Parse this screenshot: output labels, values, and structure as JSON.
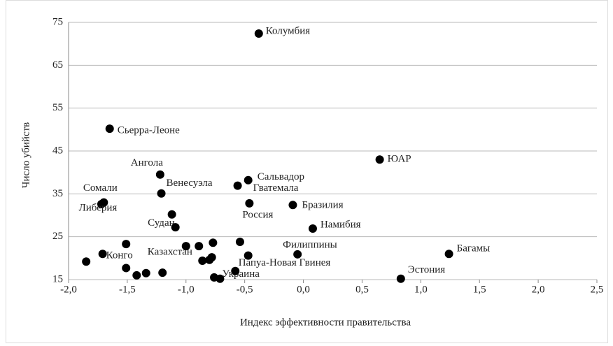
{
  "chart_data": {
    "type": "scatter",
    "x_label": "Индекс эффективности правительства",
    "y_label": "Число убийств",
    "x": [
      -0.38,
      -1.65,
      0.65,
      -1.22,
      -0.47,
      -0.56,
      -1.21,
      -1.7,
      -1.72,
      -0.46,
      -0.09,
      -1.12,
      0.08,
      -1.71,
      -1.0,
      -0.05,
      -0.47,
      1.24,
      -0.71,
      0.83,
      -1.09,
      -1.51,
      -0.54,
      -0.77,
      -0.89,
      -0.78,
      -0.8,
      -0.86,
      -1.85,
      -1.51,
      -1.2,
      -1.34,
      -1.42,
      -0.58,
      -0.76
    ],
    "values": [
      72.4,
      50.2,
      43.0,
      39.5,
      38.2,
      36.9,
      35.1,
      33.0,
      32.6,
      32.8,
      32.4,
      30.2,
      26.9,
      21.0,
      22.8,
      20.9,
      20.6,
      21.0,
      15.2,
      15.2,
      27.2,
      23.3,
      23.8,
      23.6,
      22.8,
      20.2,
      19.6,
      19.4,
      19.2,
      17.7,
      16.6,
      16.5,
      16.0,
      17.0,
      15.5
    ],
    "labels": [
      "Колумбия",
      "Сьерра-Леоне",
      "ЮАР",
      "Ангола",
      "Сальвадор",
      "Гватемала",
      "Венесуэла",
      "Сомали",
      "Либерия",
      "Россия",
      "Бразилия",
      "Судан",
      "Намибия",
      "Конго",
      "Казахстан",
      "Филиппины",
      "Папуа-Новая Гвинея",
      "Багамы",
      "Украина",
      "Эстония",
      null,
      null,
      null,
      null,
      null,
      null,
      null,
      null,
      null,
      null,
      null,
      null,
      null,
      null,
      null
    ],
    "color": "#000000",
    "xlim": [
      -2.0,
      2.5
    ],
    "xticks": [
      {
        "value": -2.0,
        "label": "-2,0"
      },
      {
        "value": -1.5,
        "label": "-1,5"
      },
      {
        "value": -1.0,
        "label": "-1,0"
      },
      {
        "value": -0.5,
        "label": "-0,5"
      },
      {
        "value": 0,
        "label": "0,0"
      },
      {
        "value": 0.5,
        "label": "0,5"
      },
      {
        "value": 1.0,
        "label": "1,0"
      },
      {
        "value": 1.5,
        "label": "1,5"
      },
      {
        "value": 2.0,
        "label": "2,0"
      },
      {
        "value": 2.5,
        "label": "2,5"
      }
    ],
    "ylim": [
      15,
      75
    ],
    "yticks": [
      15,
      25,
      35,
      45,
      55,
      65,
      75
    ],
    "grid": true
  }
}
